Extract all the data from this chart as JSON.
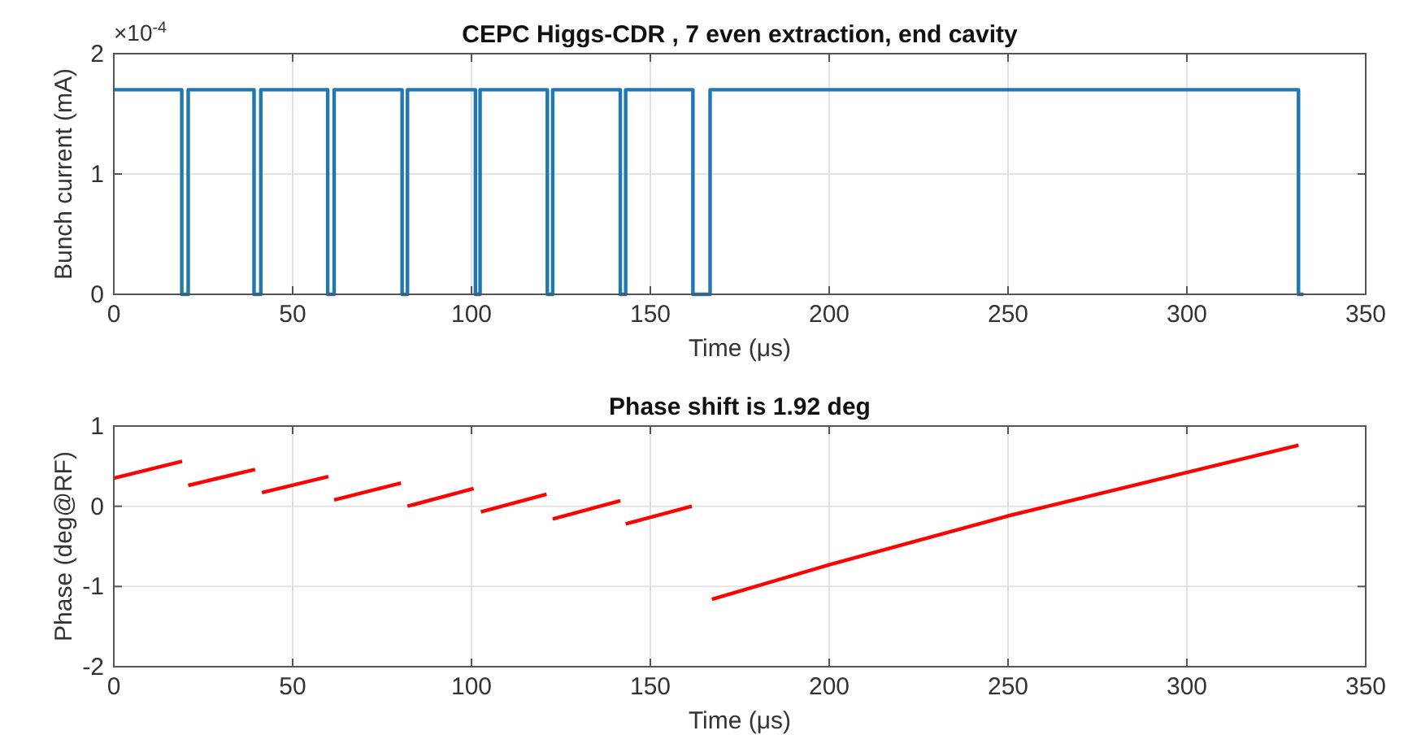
{
  "chart_data": [
    {
      "type": "line",
      "title": "CEPC Higgs-CDR , 7 even extraction, end cavity",
      "xlabel": "Time (μs)",
      "ylabel": "Bunch current (mA)",
      "annotations": [
        "×10$^{-4}$"
      ],
      "series": [
        {
          "color": "#1f77b4",
          "x": [
            0,
            19,
            19,
            20.8,
            20.8,
            39.2,
            39.2,
            41.1,
            41.1,
            59.8,
            59.8,
            61.6,
            61.6,
            80.6,
            80.6,
            82.1,
            82.1,
            101.1,
            101.1,
            102.4,
            102.4,
            121.2,
            121.2,
            122.7,
            122.7,
            141.6,
            141.6,
            143.1,
            143.1,
            161.9,
            161.9,
            166.7,
            166.7,
            331.2,
            331.2,
            332.6
          ],
          "values": [
            1.7,
            1.7,
            0,
            0,
            1.7,
            1.7,
            0,
            0,
            1.7,
            1.7,
            0,
            0,
            1.7,
            1.7,
            0,
            0,
            1.7,
            1.7,
            0,
            0,
            1.7,
            1.7,
            0,
            0,
            1.7,
            1.7,
            0,
            0,
            1.7,
            1.7,
            0,
            0,
            1.7,
            1.7,
            0,
            0
          ]
        }
      ],
      "xlim": [
        0,
        350
      ],
      "xticks": [
        0,
        50,
        100,
        150,
        200,
        250,
        300,
        350
      ],
      "ylim": [
        0,
        2
      ],
      "yticks": [
        0,
        1,
        2
      ],
      "grid": true,
      "line_style": "solid",
      "marker": "none"
    },
    {
      "type": "line",
      "title": "Phase shift is 1.92 deg",
      "xlabel": "Time (μs)",
      "ylabel": "Phase (deg@RF)",
      "series": [
        {
          "color": "#ff0000",
          "x": [
            0,
            19.1,
            null,
            20.8,
            39.5,
            null,
            41.4,
            60,
            null,
            61.6,
            80.3,
            null,
            82.1,
            100.6,
            null,
            102.6,
            121,
            null,
            122.7,
            141.6,
            null,
            143.1,
            161.6,
            null,
            167.2,
            200,
            250,
            331.2
          ],
          "values": [
            0.35,
            0.56,
            null,
            0.26,
            0.46,
            null,
            0.17,
            0.37,
            null,
            0.08,
            0.29,
            null,
            0,
            0.22,
            null,
            -0.07,
            0.15,
            null,
            -0.16,
            0.07,
            null,
            -0.22,
            0,
            null,
            -1.16,
            -0.73,
            -0.12,
            0.76
          ]
        }
      ],
      "xlim": [
        0,
        350
      ],
      "xticks": [
        0,
        50,
        100,
        150,
        200,
        250,
        300,
        350
      ],
      "ylim": [
        -2,
        1
      ],
      "yticks": [
        -2,
        -1,
        0,
        1
      ],
      "grid": true,
      "line_style": "solid",
      "marker": "none"
    }
  ]
}
